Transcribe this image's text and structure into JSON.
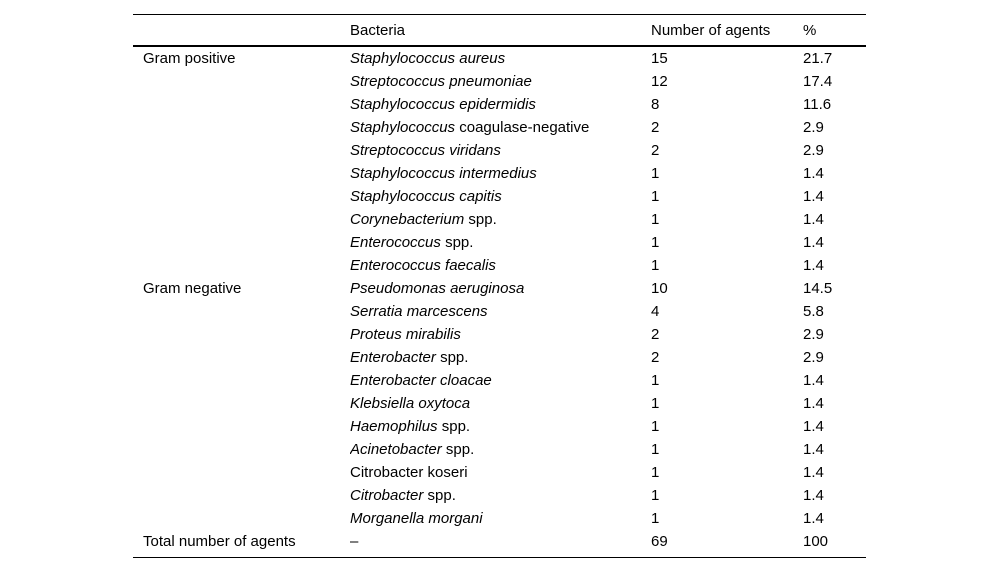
{
  "page": {
    "background_color": "#ffffff",
    "text_color": "#000000"
  },
  "table": {
    "headers": {
      "group": "",
      "bacteria": "Bacteria",
      "agents": "Number of agents",
      "percent": "%"
    },
    "rows": [
      {
        "group": "Gram positive",
        "italic": "Staphylococcus aureus",
        "rest": "",
        "agents": "15",
        "percent": "21.7"
      },
      {
        "group": "",
        "italic": "Streptococcus pneumoniae",
        "rest": "",
        "agents": "12",
        "percent": "17.4"
      },
      {
        "group": "",
        "italic": "Staphylococcus epidermidis",
        "rest": "",
        "agents": "8",
        "percent": "11.6"
      },
      {
        "group": "",
        "italic": "Staphylococcus",
        "rest": "coagulase-negative",
        "agents": "2",
        "percent": "2.9"
      },
      {
        "group": "",
        "italic": "Streptococcus viridans",
        "rest": "",
        "agents": "2",
        "percent": "2.9"
      },
      {
        "group": "",
        "italic": "Staphylococcus intermedius",
        "rest": "",
        "agents": "1",
        "percent": "1.4"
      },
      {
        "group": "",
        "italic": "Staphylococcus capitis",
        "rest": "",
        "agents": "1",
        "percent": "1.4"
      },
      {
        "group": "",
        "italic": "Corynebacterium",
        "rest": "spp.",
        "agents": "1",
        "percent": "1.4"
      },
      {
        "group": "",
        "italic": "Enterococcus",
        "rest": "spp.",
        "agents": "1",
        "percent": "1.4"
      },
      {
        "group": "",
        "italic": "Enterococcus faecalis",
        "rest": "",
        "agents": "1",
        "percent": "1.4"
      },
      {
        "group": "Gram negative",
        "italic": "Pseudomonas aeruginosa",
        "rest": "",
        "agents": "10",
        "percent": "14.5"
      },
      {
        "group": "",
        "italic": "Serratia marcescens",
        "rest": "",
        "agents": "4",
        "percent": "5.8"
      },
      {
        "group": "",
        "italic": "Proteus mirabilis",
        "rest": "",
        "agents": "2",
        "percent": "2.9"
      },
      {
        "group": "",
        "italic": "Enterobacter",
        "rest": "spp.",
        "agents": "2",
        "percent": "2.9"
      },
      {
        "group": "",
        "italic": "Enterobacter cloacae",
        "rest": "",
        "agents": "1",
        "percent": "1.4"
      },
      {
        "group": "",
        "italic": "Klebsiella oxytoca",
        "rest": "",
        "agents": "1",
        "percent": "1.4"
      },
      {
        "group": "",
        "italic": "Haemophilus",
        "rest": "spp.",
        "agents": "1",
        "percent": "1.4"
      },
      {
        "group": "",
        "italic": "Acinetobacter",
        "rest": "spp.",
        "agents": "1",
        "percent": "1.4"
      },
      {
        "group": "",
        "italic": "",
        "rest": "Citrobacter koseri",
        "agents": "1",
        "percent": "1.4"
      },
      {
        "group": "",
        "italic": "Citrobacter",
        "rest": "spp.",
        "agents": "1",
        "percent": "1.4"
      },
      {
        "group": "",
        "italic": "Morganella morgani",
        "rest": "",
        "agents": "1",
        "percent": "1.4"
      },
      {
        "group": "Total number of agents",
        "italic": "",
        "rest": "–",
        "agents": "69",
        "percent": "100"
      }
    ]
  }
}
